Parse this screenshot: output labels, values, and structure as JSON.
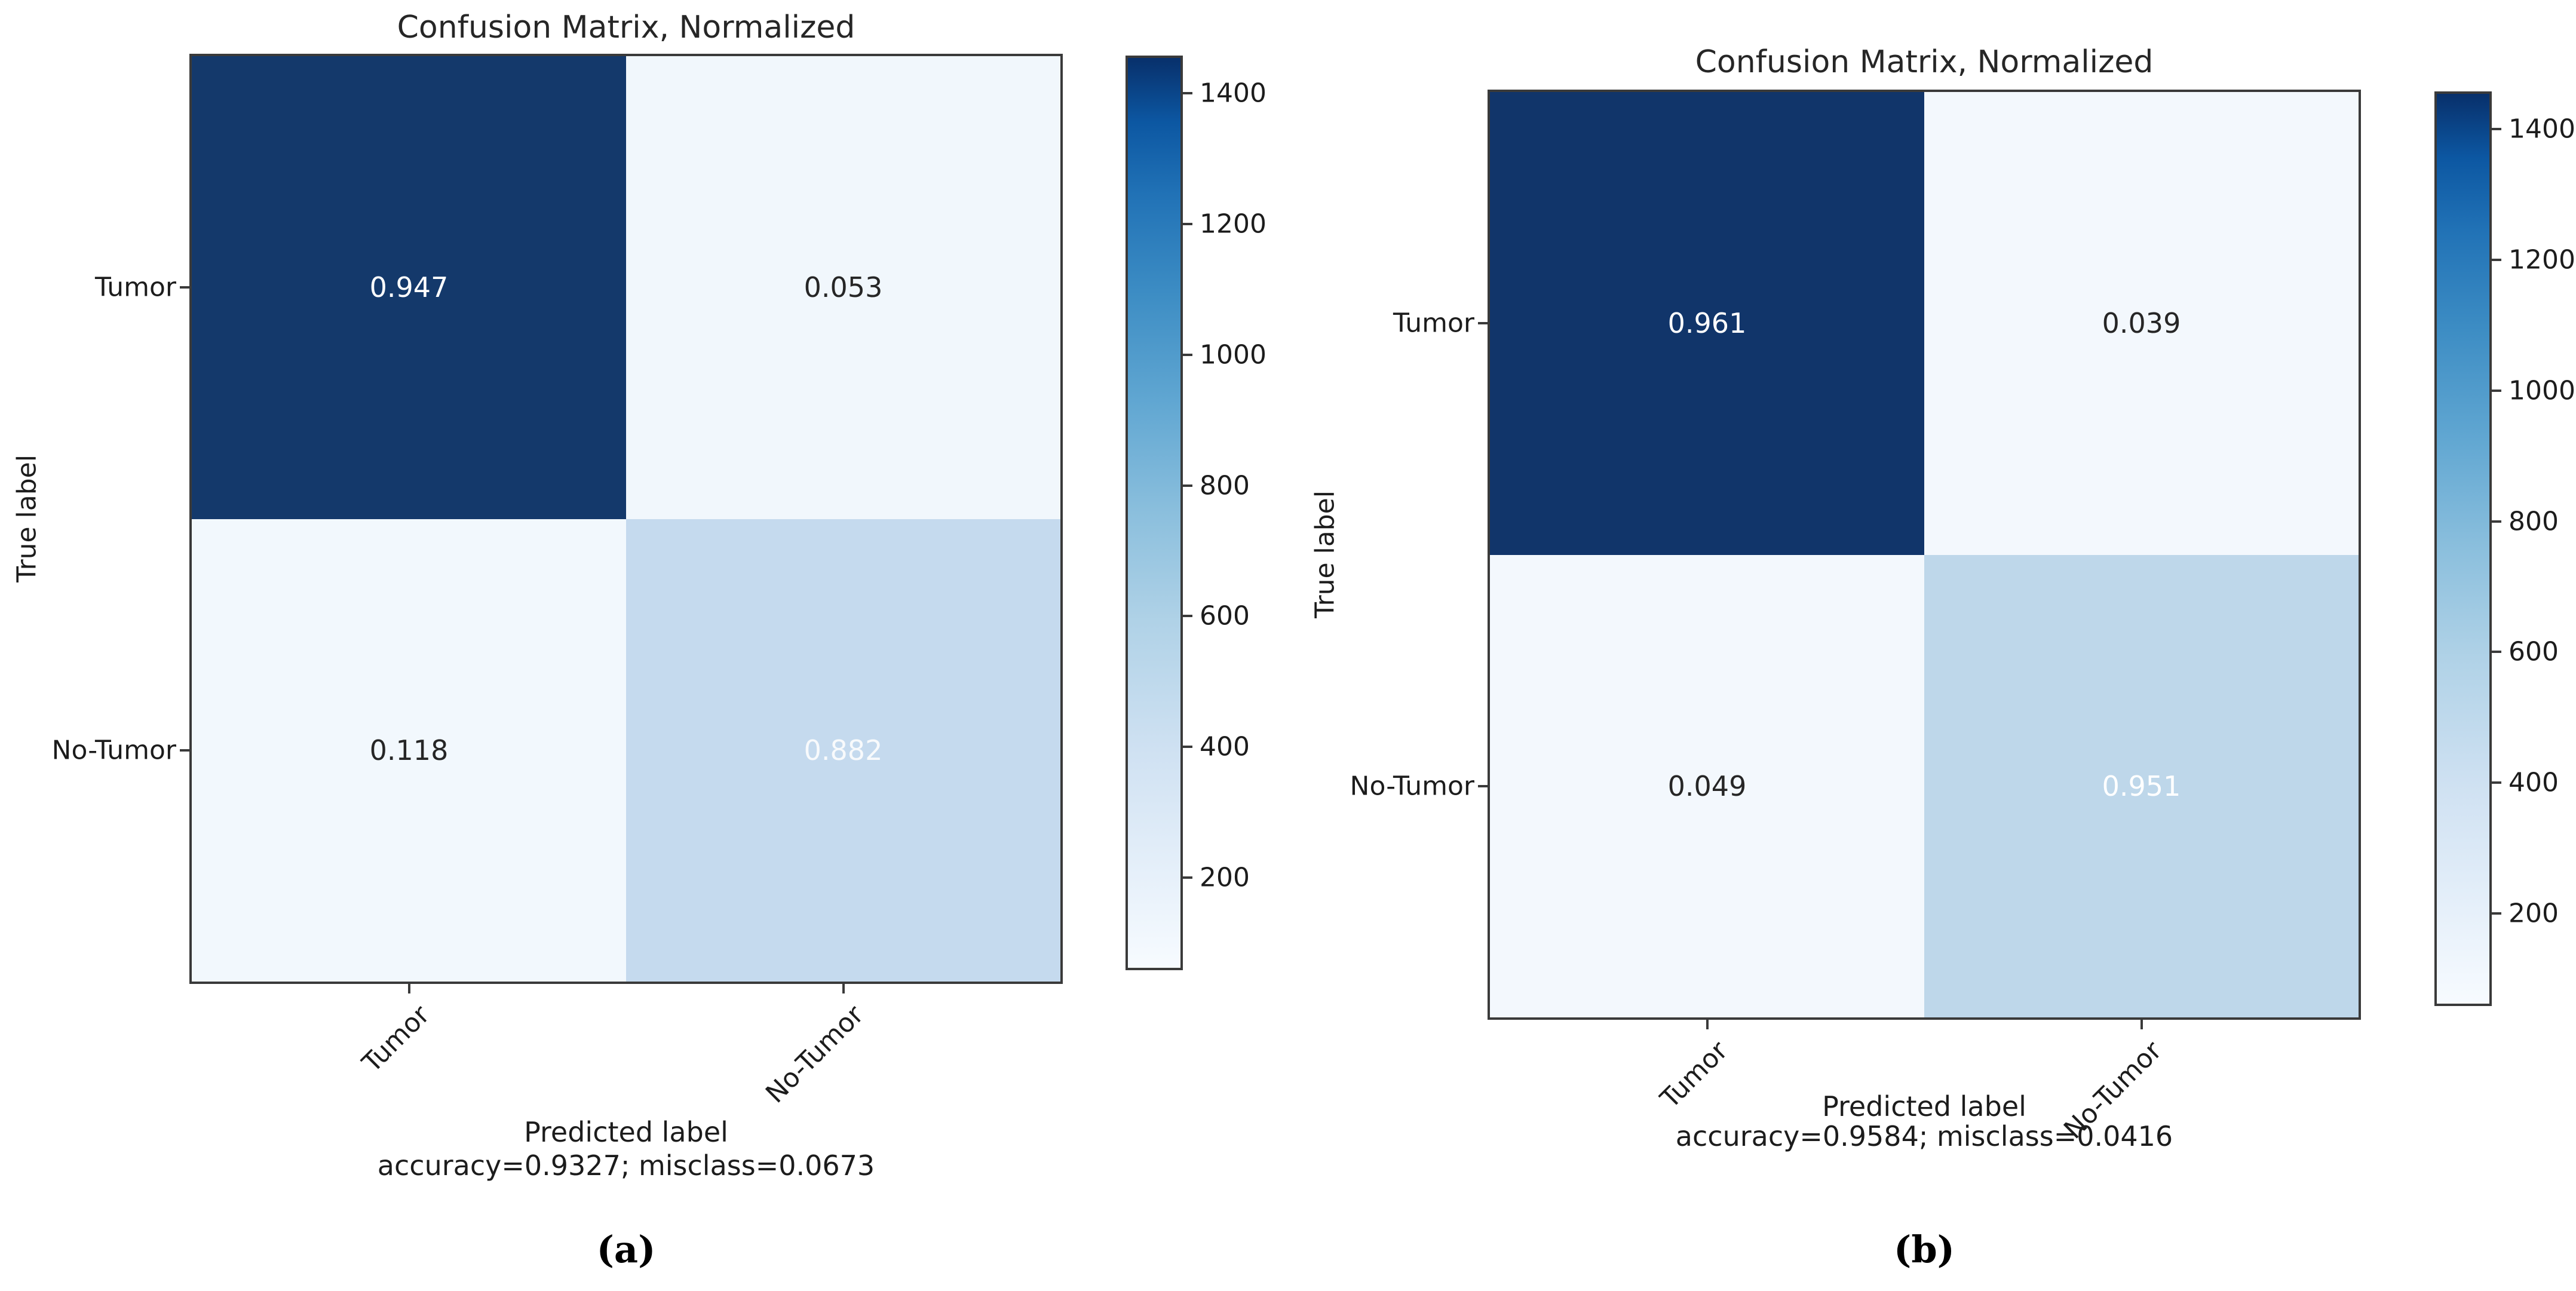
{
  "chart_data": [
    {
      "type": "heatmap",
      "title": "Confusion Matrix, Normalized",
      "xlabel": "Predicted label",
      "ylabel": "True label",
      "x_categories": [
        "Tumor",
        "No-Tumor"
      ],
      "y_categories": [
        "Tumor",
        "No-Tumor"
      ],
      "values": [
        [
          0.947,
          0.053
        ],
        [
          0.118,
          0.882
        ]
      ],
      "accuracy_line": "accuracy=0.9327; misclass=0.0673",
      "accuracy": 0.9327,
      "misclass": 0.0673,
      "panel_label": "(a)",
      "colormap": "Blues",
      "colorbar_ticks": [
        200,
        400,
        600,
        800,
        1000,
        1200,
        1400
      ],
      "colorbar_range": [
        62,
        1454
      ],
      "legend_position": "right-colorbar",
      "grid": false
    },
    {
      "type": "heatmap",
      "title": "Confusion Matrix, Normalized",
      "xlabel": "Predicted label",
      "ylabel": "True label",
      "x_categories": [
        "Tumor",
        "No-Tumor"
      ],
      "y_categories": [
        "Tumor",
        "No-Tumor"
      ],
      "values": [
        [
          0.961,
          0.039
        ],
        [
          0.049,
          0.951
        ]
      ],
      "accuracy_line": "accuracy=0.9584; misclass=0.0416",
      "accuracy": 0.9584,
      "misclass": 0.0416,
      "panel_label": "(b)",
      "colormap": "Blues",
      "colorbar_ticks": [
        200,
        400,
        600,
        800,
        1000,
        1200,
        1400
      ],
      "colorbar_range": [
        62,
        1454
      ],
      "legend_position": "right-colorbar",
      "grid": false
    }
  ],
  "render": {
    "cell_colors": [
      [
        [
          "#14396b",
          "#f1f7fc"
        ],
        [
          "#f2f8fd",
          "#c5daee"
        ]
      ],
      [
        [
          "#11356a",
          "#f3f8fd"
        ],
        [
          "#f3f8fd",
          "#bed7ea"
        ]
      ]
    ],
    "cell_text_colors": [
      [
        [
          "#ffffff",
          "#262626"
        ],
        [
          "#262626",
          "#f8fafc"
        ]
      ],
      [
        [
          "#ffffff",
          "#262626"
        ],
        [
          "#262626",
          "#ffffff"
        ]
      ]
    ],
    "spine_color": "#3a3a3a",
    "text_color": "#1c1c1c",
    "value_decimals": 3
  }
}
